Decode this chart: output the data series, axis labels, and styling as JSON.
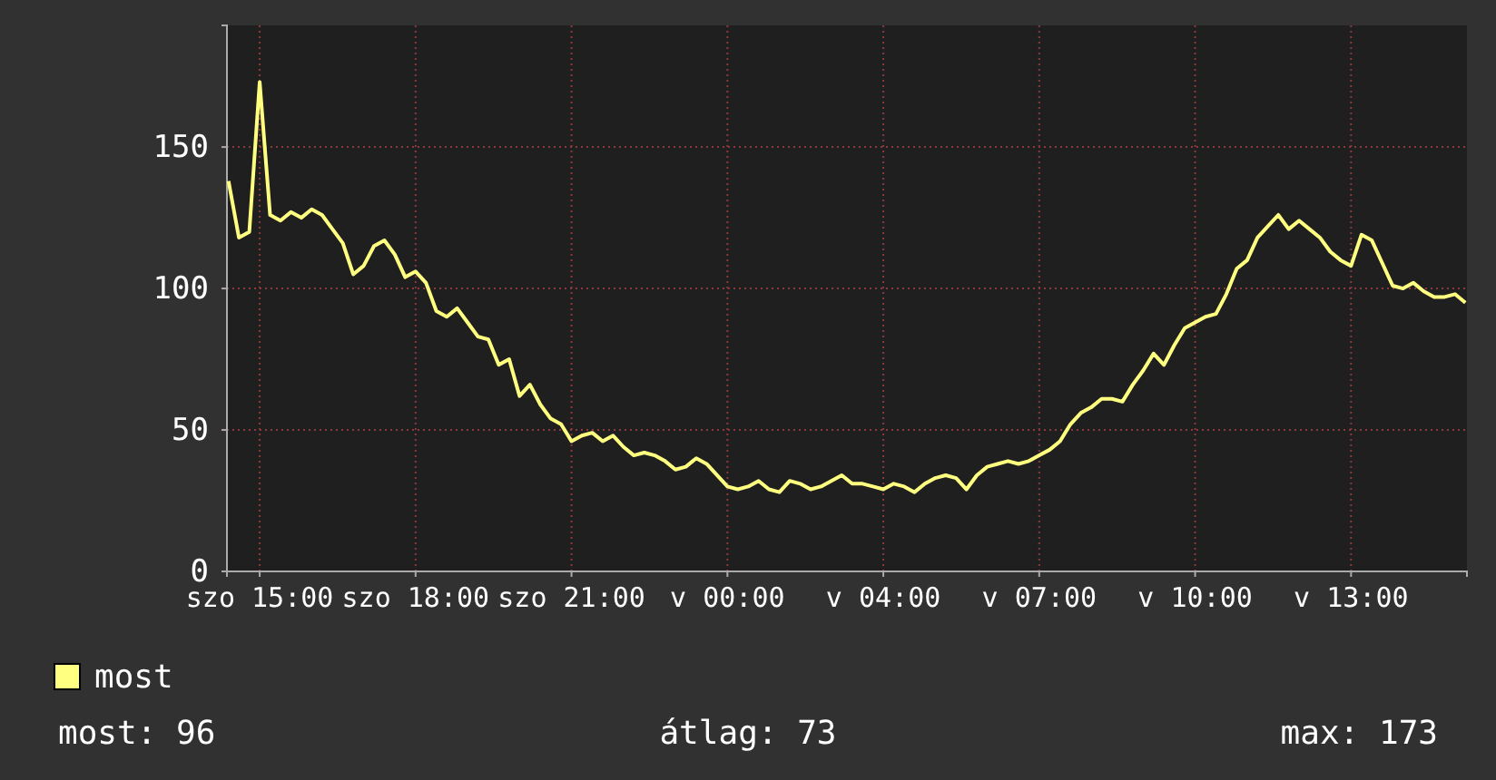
{
  "chart_data": {
    "type": "line",
    "categories": [
      null,
      null,
      null,
      "szo 15:00",
      null,
      null,
      null,
      null,
      null,
      null,
      null,
      null,
      null,
      null,
      null,
      null,
      null,
      null,
      "szo 18:00",
      null,
      null,
      null,
      null,
      null,
      null,
      null,
      null,
      null,
      null,
      null,
      null,
      null,
      null,
      "szo 21:00",
      null,
      null,
      null,
      null,
      null,
      null,
      null,
      null,
      null,
      null,
      null,
      null,
      null,
      null,
      "v 00:00",
      null,
      null,
      null,
      null,
      null,
      null,
      null,
      null,
      null,
      null,
      null,
      null,
      null,
      null,
      "v 04:00",
      null,
      null,
      null,
      null,
      null,
      null,
      null,
      null,
      null,
      null,
      null,
      null,
      null,
      null,
      "v 07:00",
      null,
      null,
      null,
      null,
      null,
      null,
      null,
      null,
      null,
      null,
      null,
      null,
      null,
      null,
      "v 10:00",
      null,
      null,
      null,
      null,
      null,
      null,
      null,
      null,
      null,
      null,
      null,
      null,
      null,
      null,
      "v 13:00",
      null,
      null,
      null,
      null,
      null,
      null,
      null,
      null,
      null,
      null,
      null
    ],
    "series": [
      {
        "name": "most",
        "color": "#ffff80",
        "values": [
          138,
          118,
          120,
          173,
          126,
          124,
          127,
          125,
          128,
          126,
          121,
          116,
          105,
          108,
          115,
          117,
          112,
          104,
          106,
          102,
          92,
          90,
          93,
          88,
          83,
          82,
          73,
          75,
          62,
          66,
          59,
          54,
          52,
          46,
          48,
          49,
          46,
          48,
          44,
          41,
          42,
          41,
          39,
          36,
          37,
          40,
          38,
          34,
          30,
          29,
          30,
          32,
          29,
          28,
          32,
          31,
          29,
          30,
          32,
          34,
          31,
          31,
          30,
          29,
          31,
          30,
          28,
          31,
          33,
          34,
          33,
          29,
          34,
          37,
          38,
          39,
          38,
          39,
          41,
          43,
          46,
          52,
          56,
          58,
          61,
          61,
          60,
          66,
          71,
          77,
          73,
          80,
          86,
          88,
          90,
          91,
          98,
          107,
          110,
          118,
          122,
          126,
          121,
          124,
          121,
          118,
          113,
          110,
          108,
          119,
          117,
          109,
          101,
          100,
          102,
          99,
          97,
          97,
          98,
          95
        ]
      }
    ],
    "ylim": [
      0,
      193
    ],
    "yticks": [
      0,
      50,
      100,
      150
    ],
    "grid": true,
    "legend": "bottom",
    "annotations": [
      "most: 96",
      "átlag: 73",
      "max: 173"
    ]
  }
}
